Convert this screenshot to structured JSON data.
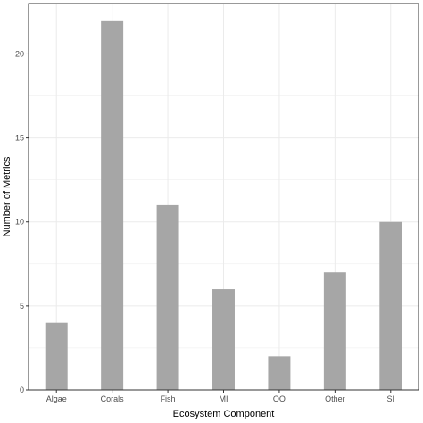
{
  "chart_data": {
    "type": "bar",
    "title": "",
    "xlabel": "Ecosystem Component",
    "ylabel": "Number of Metrics",
    "categories": [
      "Algae",
      "Corals",
      "Fish",
      "MI",
      "OO",
      "Other",
      "SI"
    ],
    "values": [
      4,
      22,
      11,
      6,
      2,
      7,
      10
    ],
    "ylim": [
      0,
      23
    ],
    "yticks": [
      0,
      5,
      10,
      15,
      20
    ],
    "grid": true,
    "legend": "none",
    "colors": {
      "bar": "#a6a6a6",
      "grid": "#ebebeb",
      "panel_border": "#333333",
      "background": "#ffffff"
    }
  }
}
